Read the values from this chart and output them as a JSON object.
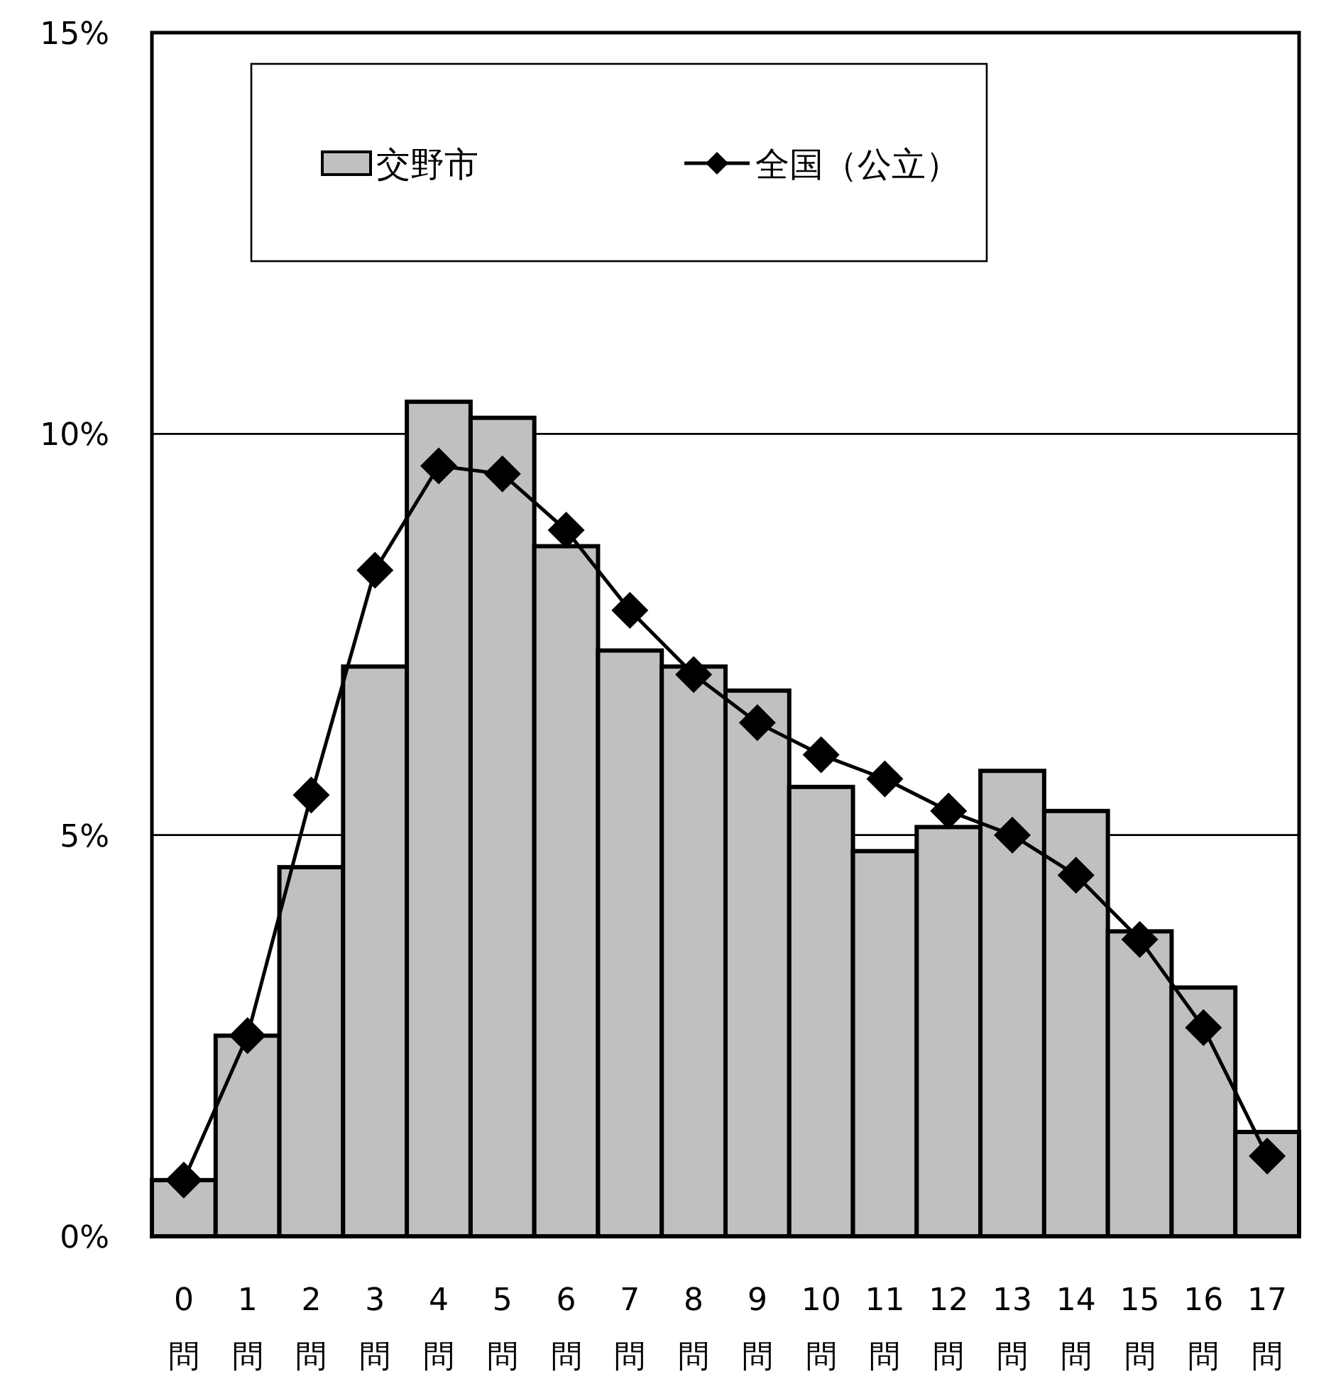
{
  "chart_data": {
    "type": "bar",
    "categories": [
      "0\n問",
      "1\n問",
      "2\n問",
      "3\n問",
      "4\n問",
      "5\n問",
      "6\n問",
      "7\n問",
      "8\n問",
      "9\n問",
      "10\n問",
      "11\n問",
      "12\n問",
      "13\n問",
      "14\n問",
      "15\n問",
      "16\n問",
      "17\n問"
    ],
    "series": [
      {
        "name": "交野市",
        "color": "#c0c0c0",
        "values": [
          0.7,
          2.5,
          4.6,
          7.1,
          10.4,
          10.2,
          8.6,
          7.3,
          7.1,
          6.8,
          5.6,
          4.8,
          5.1,
          5.8,
          5.3,
          3.8,
          3.1,
          1.3
        ]
      },
      {
        "name": "全国（公立）",
        "type": "line",
        "color": "#000000",
        "marker": "diamond",
        "line_style": "solid",
        "values": [
          0.7,
          2.5,
          5.5,
          8.3,
          9.6,
          9.5,
          8.8,
          7.8,
          7.0,
          6.4,
          6.0,
          5.7,
          5.3,
          5.0,
          4.5,
          3.7,
          2.6,
          1.0
        ]
      }
    ],
    "ylim": [
      0,
      15
    ],
    "yticks": [
      {
        "value": 0,
        "label": "0%"
      },
      {
        "value": 5,
        "label": "5%"
      },
      {
        "value": 10,
        "label": "10%"
      },
      {
        "value": 15,
        "label": "15%"
      }
    ],
    "grid": "y",
    "legend": "top left"
  }
}
